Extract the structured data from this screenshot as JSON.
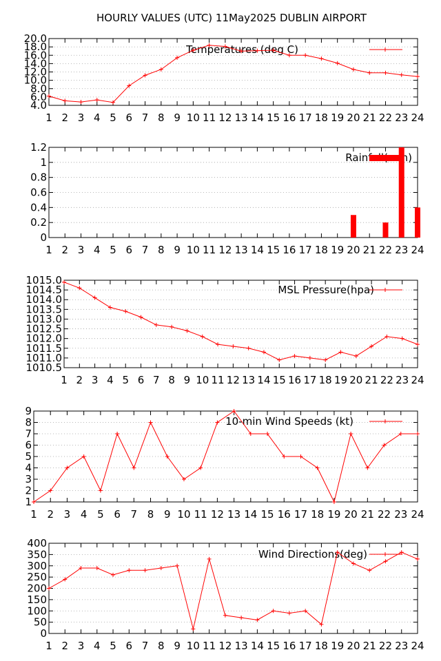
{
  "title": "HOURLY VALUES (UTC) 11May2025  DUBLIN AIRPORT",
  "colors": {
    "series": "#ff0000",
    "grid": "#a0a0a0",
    "axis": "#000000"
  },
  "chart_data": [
    {
      "type": "line",
      "legend": "Temperatures (deg C)",
      "x": [
        1,
        2,
        3,
        4,
        5,
        6,
        7,
        8,
        9,
        10,
        11,
        12,
        13,
        14,
        15,
        16,
        17,
        18,
        19,
        20,
        21,
        22,
        23,
        24
      ],
      "values": [
        6.2,
        5.1,
        4.8,
        5.3,
        4.7,
        8.7,
        11.2,
        12.6,
        15.4,
        17.2,
        18.4,
        18.1,
        17.0,
        17.1,
        17.2,
        16.0,
        16.0,
        15.2,
        14.1,
        12.6,
        11.8,
        11.8,
        11.3,
        10.9
      ],
      "ylim": [
        4.0,
        20.0
      ],
      "yticks": [
        "4.0",
        "6.0",
        "8.0",
        "10.0",
        "12.0",
        "14.0",
        "16.0",
        "18.0",
        "20.0"
      ],
      "xticks": [
        "1",
        "2",
        "3",
        "4",
        "5",
        "6",
        "7",
        "8",
        "9",
        "10",
        "11",
        "12",
        "13",
        "14",
        "15",
        "16",
        "17",
        "18",
        "19",
        "20",
        "21",
        "22",
        "23",
        "24"
      ],
      "grid": true,
      "legend_position": "top-right"
    },
    {
      "type": "bar",
      "legend": "Rainfall(mm)",
      "x": [
        1,
        2,
        3,
        4,
        5,
        6,
        7,
        8,
        9,
        10,
        11,
        12,
        13,
        14,
        15,
        16,
        17,
        18,
        19,
        20,
        21,
        22,
        23,
        24
      ],
      "values": [
        0,
        0,
        0,
        0,
        0,
        0,
        0,
        0,
        0,
        0,
        0,
        0,
        0,
        0,
        0,
        0,
        0,
        0,
        0,
        0.3,
        0,
        0.2,
        1.2,
        0.4
      ],
      "ylim": [
        0,
        1.2
      ],
      "yticks": [
        "0",
        "0.2",
        "0.4",
        "0.6",
        "0.8",
        "1",
        "1.2"
      ],
      "xticks": [
        "1",
        "2",
        "3",
        "4",
        "5",
        "6",
        "7",
        "8",
        "9",
        "10",
        "11",
        "12",
        "13",
        "14",
        "15",
        "16",
        "17",
        "18",
        "19",
        "20",
        "21",
        "22",
        "23",
        "24"
      ],
      "grid": true,
      "legend_position": "top-right"
    },
    {
      "type": "line",
      "legend": "MSL Pressure(hpa)",
      "x": [
        1,
        2,
        3,
        4,
        5,
        6,
        7,
        8,
        9,
        10,
        11,
        12,
        13,
        14,
        15,
        16,
        17,
        18,
        19,
        20,
        21,
        22,
        23,
        24
      ],
      "values": [
        1014.9,
        1014.6,
        1014.1,
        1013.6,
        1013.4,
        1013.1,
        1012.7,
        1012.6,
        1012.4,
        1012.1,
        1011.7,
        1011.6,
        1011.5,
        1011.3,
        1010.9,
        1011.1,
        1011.0,
        1010.9,
        1011.3,
        1011.1,
        1011.6,
        1012.1,
        1012.0,
        1011.7
      ],
      "ylim": [
        1010.5,
        1015.0
      ],
      "yticks": [
        "1010.5",
        "1011.0",
        "1011.5",
        "1012.0",
        "1012.5",
        "1013.0",
        "1013.5",
        "1014.0",
        "1014.5",
        "1015.0"
      ],
      "xticks": [
        "1",
        "2",
        "3",
        "4",
        "5",
        "6",
        "7",
        "8",
        "9",
        "10",
        "11",
        "12",
        "13",
        "14",
        "15",
        "16",
        "17",
        "18",
        "19",
        "20",
        "21",
        "22",
        "23",
        "24"
      ],
      "grid": true,
      "legend_position": "top-right"
    },
    {
      "type": "line",
      "legend": "10-min Wind Speeds (kt)",
      "x": [
        1,
        2,
        3,
        4,
        5,
        6,
        7,
        8,
        9,
        10,
        11,
        12,
        13,
        14,
        15,
        16,
        17,
        18,
        19,
        20,
        21,
        22,
        23,
        24
      ],
      "values": [
        1,
        2,
        4,
        5,
        2,
        7,
        4,
        8,
        5,
        3,
        4,
        8,
        9,
        7,
        7,
        5,
        5,
        4,
        1,
        7,
        4,
        6,
        7,
        7
      ],
      "ylim": [
        1,
        9
      ],
      "yticks": [
        "1",
        "2",
        "3",
        "4",
        "5",
        "6",
        "7",
        "8",
        "9"
      ],
      "xticks": [
        "1",
        "2",
        "3",
        "4",
        "5",
        "6",
        "7",
        "8",
        "9",
        "10",
        "11",
        "12",
        "13",
        "14",
        "15",
        "16",
        "17",
        "18",
        "19",
        "20",
        "21",
        "22",
        "23",
        "24"
      ],
      "grid": true,
      "legend_position": "top-right"
    },
    {
      "type": "line",
      "legend": "Wind Directions(deg)",
      "x": [
        1,
        2,
        3,
        4,
        5,
        6,
        7,
        8,
        9,
        10,
        11,
        12,
        13,
        14,
        15,
        16,
        17,
        18,
        19,
        20,
        21,
        22,
        23,
        24
      ],
      "values": [
        200,
        240,
        290,
        290,
        260,
        280,
        280,
        290,
        300,
        20,
        330,
        80,
        70,
        60,
        100,
        90,
        100,
        40,
        360,
        310,
        280,
        320,
        360,
        330
      ],
      "ylim": [
        0,
        400
      ],
      "yticks": [
        "0",
        "50",
        "100",
        "150",
        "200",
        "250",
        "300",
        "350",
        "400"
      ],
      "xticks": [
        "1",
        "2",
        "3",
        "4",
        "5",
        "6",
        "7",
        "8",
        "9",
        "10",
        "11",
        "12",
        "13",
        "14",
        "15",
        "16",
        "17",
        "18",
        "19",
        "20",
        "21",
        "22",
        "23",
        "24"
      ],
      "grid": true,
      "legend_position": "top-right"
    }
  ]
}
